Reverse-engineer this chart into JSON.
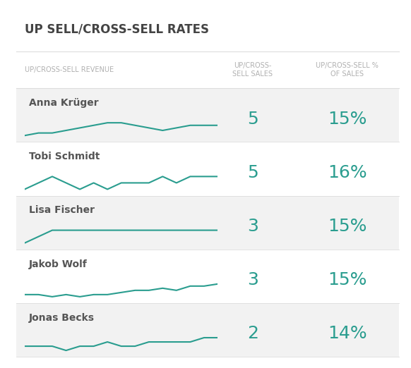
{
  "title": "UP SELL/CROSS-SELL RATES",
  "col1_header": "UP/CROSS-SELL REVENUE",
  "col2_header": "UP/CROSS-\nSELL SALES",
  "col3_header": "UP/CROSS-SELL %\nOF SALES",
  "reps": [
    {
      "name": "Anna Krüger",
      "sales": "5",
      "pct": "15%",
      "y": [
        1,
        2,
        2,
        3,
        4,
        5,
        6,
        6,
        5,
        4,
        3,
        4,
        5,
        5,
        5
      ]
    },
    {
      "name": "Tobi Schmidt",
      "sales": "5",
      "pct": "16%",
      "y": [
        2,
        3,
        4,
        3,
        2,
        3,
        2,
        3,
        3,
        3,
        4,
        3,
        4,
        4,
        4
      ]
    },
    {
      "name": "Lisa Fischer",
      "sales": "3",
      "pct": "15%",
      "y": [
        2,
        3,
        4,
        4,
        4,
        4,
        4,
        4,
        4,
        4,
        4,
        4,
        4,
        4,
        4
      ]
    },
    {
      "name": "Jakob Wolf",
      "sales": "3",
      "pct": "15%",
      "y": [
        3,
        3,
        2,
        3,
        2,
        3,
        3,
        4,
        5,
        5,
        6,
        5,
        7,
        7,
        8
      ]
    },
    {
      "name": "Jonas Becks",
      "sales": "2",
      "pct": "14%",
      "y": [
        3,
        3,
        3,
        2,
        3,
        3,
        4,
        3,
        3,
        4,
        4,
        4,
        4,
        5,
        5
      ]
    }
  ],
  "line_color": "#2a9d8f",
  "line_width": 1.5,
  "bg_stripe": "#f2f2f2",
  "bg_white": "#ffffff",
  "title_color": "#444444",
  "header_color": "#b0b0b0",
  "name_color": "#555555",
  "value_color": "#2a9d8f",
  "border_color": "#dddddd",
  "fig_w": 5.82,
  "fig_h": 5.22,
  "dpi": 100
}
